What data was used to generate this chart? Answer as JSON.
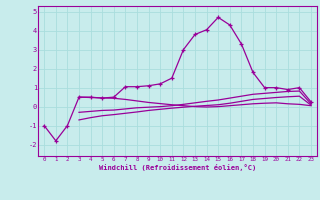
{
  "xlabel": "Windchill (Refroidissement éolien,°C)",
  "bg_color": "#c8ecec",
  "line_color": "#990099",
  "grid_color": "#aadddd",
  "x_data": [
    0,
    1,
    2,
    3,
    4,
    5,
    6,
    7,
    8,
    9,
    10,
    11,
    12,
    13,
    14,
    15,
    16,
    17,
    18,
    19,
    20,
    21,
    22,
    23
  ],
  "line1": [
    -1.0,
    -1.8,
    -1.0,
    0.5,
    0.5,
    0.45,
    0.5,
    1.05,
    1.05,
    1.1,
    1.2,
    1.5,
    3.0,
    3.8,
    4.05,
    4.7,
    4.3,
    3.3,
    1.8,
    1.0,
    1.0,
    0.9,
    1.0,
    0.25
  ],
  "line2": [
    null,
    null,
    null,
    0.5,
    0.48,
    0.46,
    0.44,
    0.38,
    0.3,
    0.22,
    0.16,
    0.1,
    0.05,
    0.0,
    -0.02,
    0.0,
    0.05,
    0.1,
    0.15,
    0.18,
    0.2,
    0.15,
    0.12,
    0.05
  ],
  "line3": [
    null,
    null,
    null,
    -0.3,
    -0.25,
    -0.2,
    -0.18,
    -0.12,
    -0.06,
    -0.03,
    0.0,
    0.05,
    0.12,
    0.2,
    0.28,
    0.35,
    0.45,
    0.55,
    0.65,
    0.7,
    0.75,
    0.8,
    0.82,
    0.15
  ],
  "line4": [
    null,
    null,
    null,
    -0.7,
    -0.58,
    -0.48,
    -0.42,
    -0.35,
    -0.28,
    -0.2,
    -0.14,
    -0.08,
    -0.03,
    0.02,
    0.06,
    0.1,
    0.18,
    0.28,
    0.38,
    0.43,
    0.48,
    0.52,
    0.55,
    0.08
  ],
  "xlim": [
    -0.5,
    23.5
  ],
  "ylim": [
    -2.6,
    5.3
  ],
  "yticks": [
    -2,
    -1,
    0,
    1,
    2,
    3,
    4,
    5
  ],
  "xticks": [
    0,
    1,
    2,
    3,
    4,
    5,
    6,
    7,
    8,
    9,
    10,
    11,
    12,
    13,
    14,
    15,
    16,
    17,
    18,
    19,
    20,
    21,
    22,
    23
  ]
}
